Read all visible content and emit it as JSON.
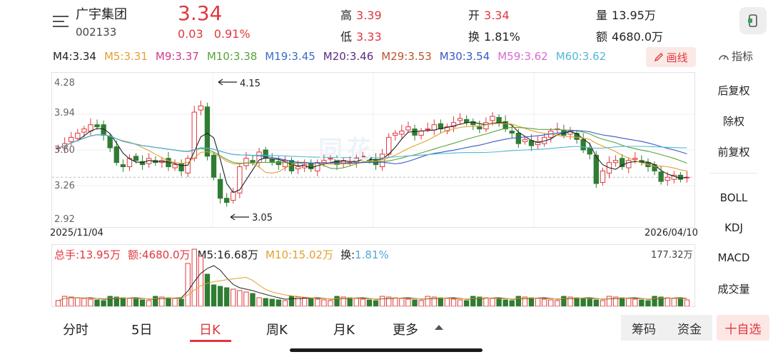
{
  "header": {
    "stock_name": "广宇集团",
    "stock_code": "002133",
    "price": "3.34",
    "change": "0.03",
    "change_pct": "0.91%",
    "quotes": [
      {
        "label": "高",
        "value": "3.39",
        "color": "#e0383e"
      },
      {
        "label": "低",
        "value": "3.33",
        "color": "#e0383e"
      },
      {
        "label": "开",
        "value": "3.34",
        "color": "#e0383e"
      },
      {
        "label": "换",
        "value": "1.81%",
        "color": "#222222"
      },
      {
        "label": "量",
        "value": "13.95万",
        "color": "#222222"
      },
      {
        "label": "额",
        "value": "4680.0万",
        "color": "#222222"
      }
    ]
  },
  "ma_row": [
    {
      "text": "M4:3.34",
      "color": "#222222"
    },
    {
      "text": "M5:3.31",
      "color": "#e3a02e"
    },
    {
      "text": "M9:3.37",
      "color": "#d6398c"
    },
    {
      "text": "M10:3.38",
      "color": "#57a33b"
    },
    {
      "text": "M19:3.45",
      "color": "#3a6cc7"
    },
    {
      "text": "M20:3.46",
      "color": "#5b2a83"
    },
    {
      "text": "M29:3.53",
      "color": "#b8532f"
    },
    {
      "text": "M30:3.54",
      "color": "#3858c5"
    },
    {
      "text": "M59:3.62",
      "color": "#d66bd0"
    },
    {
      "text": "M60:3.62",
      "color": "#53b8d6"
    }
  ],
  "toolbar": {
    "draw_label": "画线",
    "indicator_label": "指标"
  },
  "right_menu": [
    "后复权",
    "除权",
    "前复权",
    "BOLL",
    "KDJ",
    "MACD",
    "成交量"
  ],
  "right_menu_active": [
    "前复权",
    "成交量"
  ],
  "chart": {
    "y_labels": [
      "4.28",
      "3.94",
      "3.60",
      "3.26",
      "2.92"
    ],
    "date_start": "2025/11/04",
    "date_end": "2026/04/10",
    "high_annotation": "4.15",
    "low_annotation": "3.05",
    "vol_max_label": "177.32万",
    "watermark": "同花"
  },
  "volume_info": [
    {
      "text": "总手:13.95万",
      "color": "#e0383e"
    },
    {
      "text": "额:4680.0万",
      "color": "#e0383e"
    },
    {
      "text": "M5:16.68万",
      "color": "#222222"
    },
    {
      "text": "M10:15.02万",
      "color": "#e3a02e"
    },
    {
      "text": "换:",
      "color": "#222222"
    },
    {
      "text": "1.81%",
      "color": "#53a7d6"
    }
  ],
  "tabs": [
    "分时",
    "5日",
    "日K",
    "周K",
    "月K",
    "更多"
  ],
  "active_tab": "日K",
  "bottom_buttons": {
    "chips": "筹码",
    "funds": "资金",
    "add": "十自选"
  },
  "chart_data": {
    "type": "candlestick",
    "title": "",
    "ylim": [
      2.92,
      4.28
    ],
    "high": 4.15,
    "low": 3.05,
    "close_last": 3.34,
    "up_color": "#e0383e",
    "down_color": "#2e7d32"
  }
}
